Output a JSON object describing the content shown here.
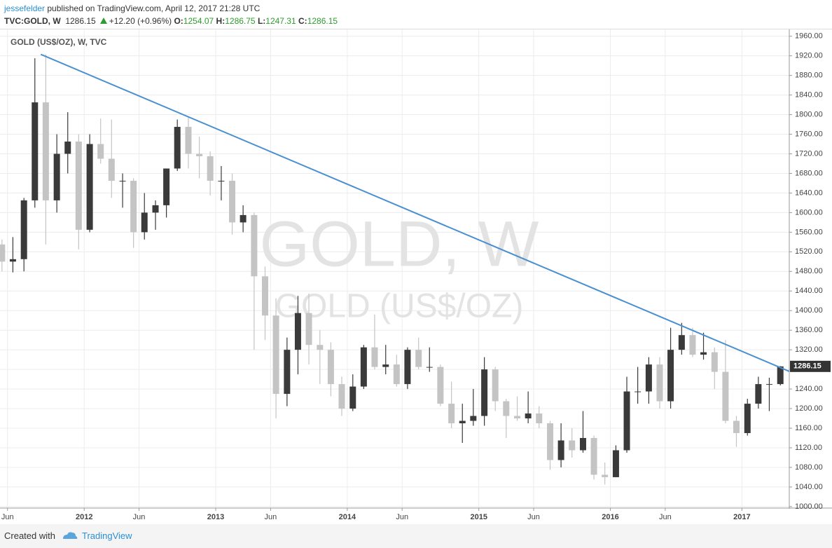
{
  "header": {
    "user": "jessefelder",
    "published": "published on TradingView.com, April 12, 2017 21:28 UTC",
    "symbol": "TVC:GOLD, W",
    "last": "1286.15",
    "change": "+12.20 (+0.96%)",
    "ohlc": [
      {
        "label": "O:",
        "value": "1254.07"
      },
      {
        "label": "H:",
        "value": "1286.75"
      },
      {
        "label": "L:",
        "value": "1247.31"
      },
      {
        "label": "C:",
        "value": "1286.15"
      }
    ]
  },
  "chart_data": {
    "type": "candlestick",
    "legend_title": "GOLD (US$/OZ), W, TVC",
    "watermark": "GOLD, W",
    "watermark_subtitle": "GOLD (US$/OZ)",
    "up_color": "#3a3a3a",
    "down_color": "#c4c4c4",
    "grid": true,
    "x": [
      2011.375,
      2011.458,
      2011.542,
      2011.625,
      2011.708,
      2011.792,
      2011.875,
      2011.958,
      2012.042,
      2012.125,
      2012.208,
      2012.292,
      2012.375,
      2012.458,
      2012.542,
      2012.625,
      2012.708,
      2012.792,
      2012.875,
      2012.958,
      2013.042,
      2013.125,
      2013.208,
      2013.292,
      2013.375,
      2013.458,
      2013.542,
      2013.625,
      2013.708,
      2013.792,
      2013.875,
      2013.958,
      2014.042,
      2014.125,
      2014.208,
      2014.292,
      2014.375,
      2014.458,
      2014.542,
      2014.625,
      2014.708,
      2014.792,
      2014.875,
      2014.958,
      2015.042,
      2015.125,
      2015.208,
      2015.292,
      2015.375,
      2015.458,
      2015.542,
      2015.625,
      2015.708,
      2015.792,
      2015.875,
      2015.958,
      2016.042,
      2016.125,
      2016.208,
      2016.292,
      2016.375,
      2016.458,
      2016.542,
      2016.625,
      2016.708,
      2016.792,
      2016.875,
      2016.958,
      2017.042,
      2017.125,
      2017.208,
      2017.292
    ],
    "open": [
      1535,
      1500,
      1505,
      1625,
      1825,
      1625,
      1720,
      1745,
      1565,
      1740,
      1710,
      1665,
      1665,
      1560,
      1600,
      1615,
      1690,
      1775,
      1720,
      1715,
      1665,
      1665,
      1580,
      1595,
      1470,
      1390,
      1230,
      1320,
      1395,
      1330,
      1320,
      1250,
      1200,
      1245,
      1325,
      1285,
      1290,
      1250,
      1320,
      1285,
      1285,
      1210,
      1170,
      1175,
      1185,
      1280,
      1215,
      1185,
      1180,
      1190,
      1170,
      1095,
      1135,
      1115,
      1140,
      1065,
      1060,
      1115,
      1235,
      1235,
      1290,
      1215,
      1320,
      1350,
      1310,
      1315,
      1275,
      1175,
      1150,
      1210,
      1250,
      1250
    ],
    "high": [
      1545,
      1550,
      1630,
      1915,
      1923,
      1760,
      1805,
      1760,
      1760,
      1792,
      1790,
      1680,
      1670,
      1640,
      1625,
      1690,
      1790,
      1795,
      1755,
      1725,
      1695,
      1680,
      1615,
      1600,
      1490,
      1425,
      1345,
      1430,
      1435,
      1360,
      1335,
      1265,
      1270,
      1330,
      1392,
      1330,
      1310,
      1325,
      1345,
      1325,
      1290,
      1255,
      1210,
      1240,
      1305,
      1285,
      1220,
      1225,
      1235,
      1205,
      1175,
      1170,
      1160,
      1195,
      1145,
      1090,
      1125,
      1265,
      1285,
      1305,
      1305,
      1365,
      1375,
      1365,
      1355,
      1325,
      1340,
      1185,
      1220,
      1265,
      1263,
      1286.75
    ],
    "low": [
      1480,
      1478,
      1480,
      1610,
      1535,
      1600,
      1680,
      1525,
      1560,
      1700,
      1630,
      1610,
      1528,
      1545,
      1565,
      1590,
      1685,
      1690,
      1670,
      1635,
      1625,
      1555,
      1560,
      1320,
      1340,
      1180,
      1205,
      1270,
      1290,
      1250,
      1225,
      1185,
      1195,
      1240,
      1280,
      1270,
      1245,
      1240,
      1280,
      1275,
      1205,
      1160,
      1130,
      1165,
      1165,
      1195,
      1140,
      1175,
      1170,
      1160,
      1075,
      1080,
      1100,
      1110,
      1055,
      1045,
      1060,
      1110,
      1210,
      1210,
      1200,
      1200,
      1310,
      1305,
      1300,
      1240,
      1170,
      1122,
      1145,
      1200,
      1195,
      1247.31
    ],
    "close": [
      1500,
      1505,
      1625,
      1825,
      1625,
      1720,
      1745,
      1565,
      1740,
      1710,
      1665,
      1665,
      1560,
      1600,
      1615,
      1690,
      1775,
      1720,
      1715,
      1665,
      1665,
      1580,
      1595,
      1470,
      1390,
      1230,
      1320,
      1395,
      1330,
      1320,
      1250,
      1200,
      1245,
      1325,
      1285,
      1290,
      1250,
      1320,
      1285,
      1285,
      1210,
      1170,
      1175,
      1185,
      1280,
      1215,
      1185,
      1180,
      1190,
      1170,
      1095,
      1135,
      1115,
      1140,
      1065,
      1060,
      1115,
      1235,
      1235,
      1290,
      1215,
      1320,
      1350,
      1310,
      1315,
      1275,
      1175,
      1150,
      1210,
      1250,
      1250,
      1286.15
    ],
    "trendline": {
      "x": [
        2011.67,
        2017.36
      ],
      "y": [
        1923,
        1276
      ],
      "color": "#4a8fcf"
    },
    "last_price": {
      "value": 1286.15,
      "label": "1286.15"
    },
    "xlim": [
      2011.36,
      2017.36
    ],
    "ylim": [
      997,
      1971
    ],
    "xticks": [
      {
        "value": 2011.417,
        "label": "Jun"
      },
      2012,
      {
        "value": 2012.417,
        "label": "Jun"
      },
      2013,
      {
        "value": 2013.417,
        "label": "Jun"
      },
      2014,
      {
        "value": 2014.417,
        "label": "Jun"
      },
      2015,
      {
        "value": 2015.417,
        "label": "Jun"
      },
      2016,
      {
        "value": 2016.417,
        "label": "Jun"
      },
      2017
    ],
    "yticks": [
      {
        "value": 1000,
        "label": "1000.00"
      },
      {
        "value": 1040,
        "label": "1040.00"
      },
      {
        "value": 1080,
        "label": "1080.00"
      },
      {
        "value": 1120,
        "label": "1120.00"
      },
      {
        "value": 1160,
        "label": "1160.00"
      },
      {
        "value": 1200,
        "label": "1200.00"
      },
      {
        "value": 1240,
        "label": "1240.00"
      },
      {
        "value": 1280,
        "label": "1280.00"
      },
      {
        "value": 1320,
        "label": "1320.00"
      },
      {
        "value": 1360,
        "label": "1360.00"
      },
      {
        "value": 1400,
        "label": "1400.00"
      },
      {
        "value": 1440,
        "label": "1440.00"
      },
      {
        "value": 1480,
        "label": "1480.00"
      },
      {
        "value": 1520,
        "label": "1520.00"
      },
      {
        "value": 1560,
        "label": "1560.00"
      },
      {
        "value": 1600,
        "label": "1600.00"
      },
      {
        "value": 1640,
        "label": "1640.00"
      },
      {
        "value": 1680,
        "label": "1680.00"
      },
      {
        "value": 1720,
        "label": "1720.00"
      },
      {
        "value": 1760,
        "label": "1760.00"
      },
      {
        "value": 1800,
        "label": "1800.00"
      },
      {
        "value": 1840,
        "label": "1840.00"
      },
      {
        "value": 1880,
        "label": "1880.00"
      },
      {
        "value": 1920,
        "label": "1920.00"
      },
      {
        "value": 1960,
        "label": "1960.00"
      }
    ]
  },
  "footer": {
    "created": "Created with",
    "brand": "TradingView"
  }
}
